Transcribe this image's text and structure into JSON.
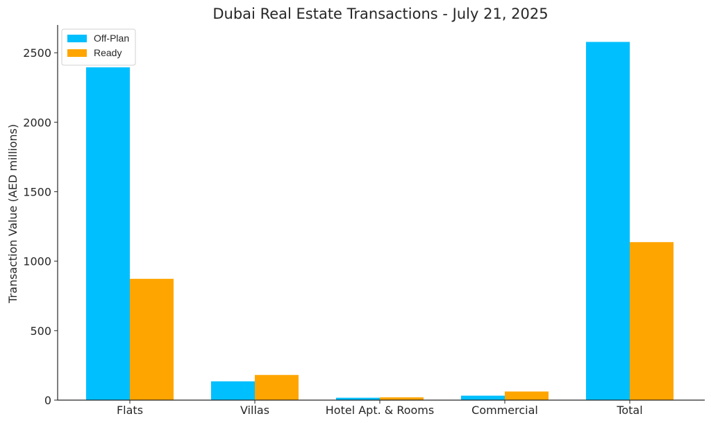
{
  "chart_data": {
    "type": "bar",
    "title": "Dubai Real Estate Transactions - July 21, 2025",
    "xlabel": "",
    "ylabel": "Transaction Value (AED millions)",
    "categories": [
      "Flats",
      "Villas",
      "Hotel Apt. & Rooms",
      "Commercial",
      "Total"
    ],
    "series": [
      {
        "name": "Off-Plan",
        "color": "#00BFFF",
        "values": [
          2395,
          135,
          17,
          32,
          2578
        ]
      },
      {
        "name": "Ready",
        "color": "#FFA500",
        "values": [
          873,
          181,
          20,
          62,
          1137
        ]
      }
    ],
    "ylim": [
      0,
      2700
    ],
    "yticks": [
      0,
      500,
      1000,
      1500,
      2000,
      2500
    ],
    "grid": false,
    "legend_position": "top-left"
  }
}
